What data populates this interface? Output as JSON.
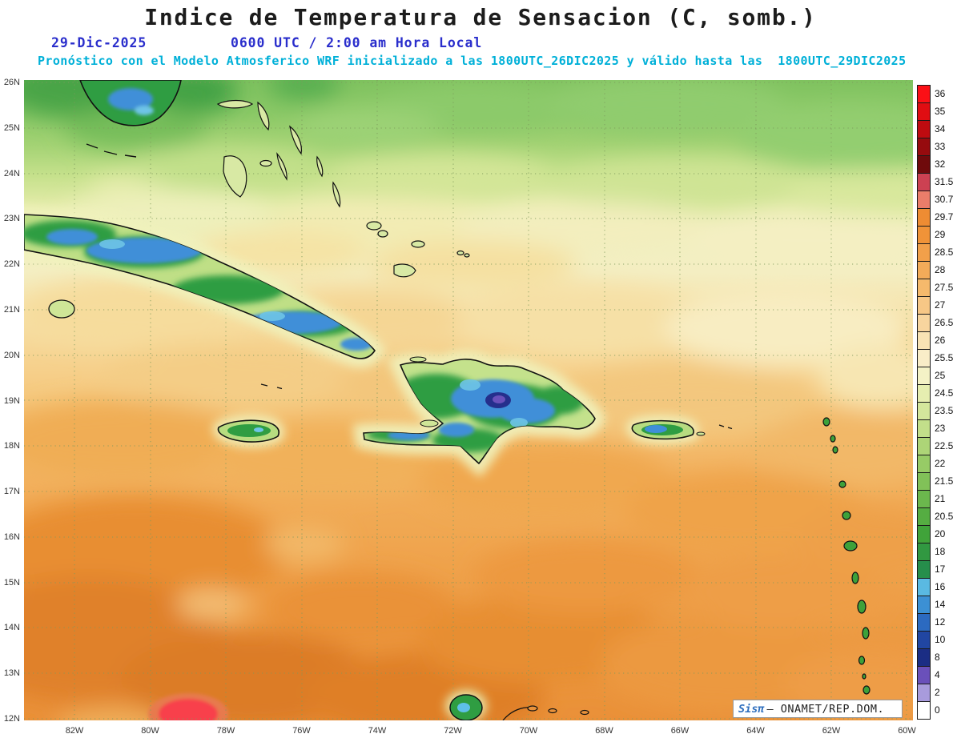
{
  "header": {
    "title": "Indice de Temperatura de Sensacion (C, somb.)",
    "date": "29-Dic-2025",
    "time": "0600 UTC / 2:00 am Hora Local",
    "forecast_note": "Pronóstico con el Modelo Atmosferico WRF inicializado a las 1800UTC_26DIC2025 y válido hasta las  1800UTC_29DIC2025"
  },
  "axes": {
    "lat_ticks": [
      "26N",
      "25N",
      "24N",
      "23N",
      "22N",
      "21N",
      "20N",
      "19N",
      "18N",
      "17N",
      "16N",
      "15N",
      "14N",
      "13N",
      "12N"
    ],
    "lon_ticks": [
      "82W",
      "80W",
      "78W",
      "76W",
      "74W",
      "72W",
      "70W",
      "68W",
      "66W",
      "64W",
      "62W",
      "60W"
    ]
  },
  "legend": {
    "items": [
      {
        "label": "36",
        "color": "#fb1016"
      },
      {
        "label": "35",
        "color": "#e00d12"
      },
      {
        "label": "34",
        "color": "#be0b10"
      },
      {
        "label": "33",
        "color": "#960b0e"
      },
      {
        "label": "32",
        "color": "#6f0a0c"
      },
      {
        "label": "31.5",
        "color": "#cc4152"
      },
      {
        "label": "30.7",
        "color": "#ea7d6a"
      },
      {
        "label": "29.7",
        "color": "#ee8c33"
      },
      {
        "label": "29",
        "color": "#f09338"
      },
      {
        "label": "28.5",
        "color": "#f2a04a"
      },
      {
        "label": "28",
        "color": "#f3ab59"
      },
      {
        "label": "27.5",
        "color": "#f5b96c"
      },
      {
        "label": "27",
        "color": "#f7c786"
      },
      {
        "label": "26.5",
        "color": "#f8d59e"
      },
      {
        "label": "26",
        "color": "#f9e3b4"
      },
      {
        "label": "25.5",
        "color": "#f9edc8"
      },
      {
        "label": "25",
        "color": "#f4f2c6"
      },
      {
        "label": "24.5",
        "color": "#e6eeb0"
      },
      {
        "label": "23.5",
        "color": "#d4e79c"
      },
      {
        "label": "23",
        "color": "#c2df8a"
      },
      {
        "label": "22.5",
        "color": "#add577"
      },
      {
        "label": "22",
        "color": "#97cb66"
      },
      {
        "label": "21.5",
        "color": "#81c158"
      },
      {
        "label": "21",
        "color": "#6bb74d"
      },
      {
        "label": "20.5",
        "color": "#55ad42"
      },
      {
        "label": "20",
        "color": "#40a33a"
      },
      {
        "label": "18",
        "color": "#319841"
      },
      {
        "label": "17",
        "color": "#268e4b"
      },
      {
        "label": "16",
        "color": "#5ab9e2"
      },
      {
        "label": "14",
        "color": "#3c90d4"
      },
      {
        "label": "12",
        "color": "#2c6ac0"
      },
      {
        "label": "10",
        "color": "#2146a2"
      },
      {
        "label": "8",
        "color": "#1b2d84"
      },
      {
        "label": "4",
        "color": "#6a50ba"
      },
      {
        "label": "2",
        "color": "#a89bdc"
      },
      {
        "label": "0",
        "color": "#ffffff"
      }
    ]
  },
  "attribution": {
    "brand": "Sisπ",
    "text": "— ONAMET/REP.DOM."
  },
  "colors": {
    "title_text": "#1c1c1c",
    "date_text": "#2a2ecc",
    "forecast_text": "#00b0d8",
    "attribution_brand": "#2f6fbe"
  },
  "chart_data": {
    "type": "heatmap",
    "title": "Indice de Temperatura de Sensacion (C, somb.)",
    "units": "C",
    "lat_range": [
      "12N",
      "26N"
    ],
    "lon_range": [
      "82W",
      "60W"
    ],
    "scale_values": [
      36,
      35,
      34,
      33,
      32,
      31.5,
      30.7,
      29.7,
      29,
      28.5,
      28,
      27.5,
      27,
      26.5,
      26,
      25.5,
      25,
      24.5,
      23.5,
      23,
      22.5,
      22,
      21.5,
      21,
      20.5,
      20,
      18,
      17,
      16,
      14,
      12,
      10,
      8,
      4,
      2,
      0
    ],
    "legend_position": "right"
  }
}
